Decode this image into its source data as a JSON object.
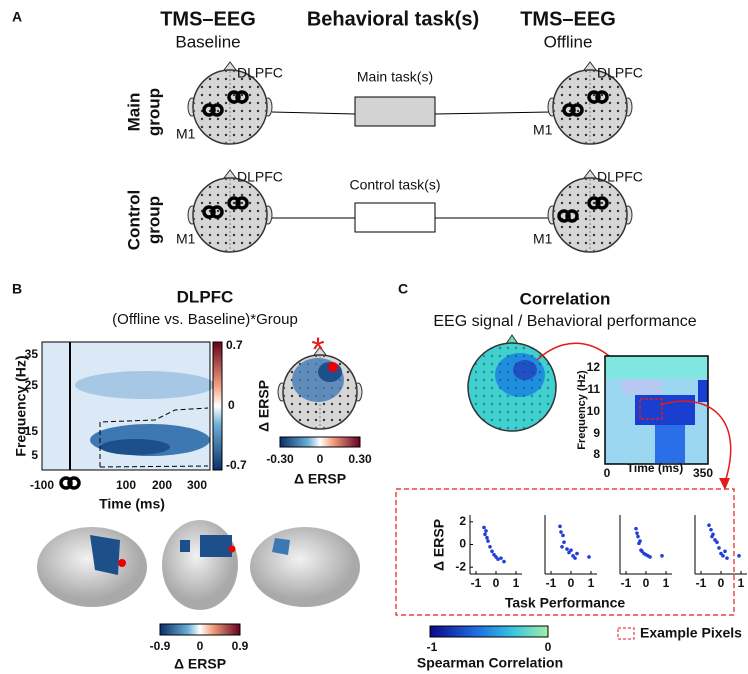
{
  "panel_a": {
    "label": "A",
    "col_left": {
      "title": "TMS–EEG",
      "subtitle": "Baseline"
    },
    "col_mid": {
      "title": "Behavioral task(s)"
    },
    "col_right": {
      "title": "TMS–EEG",
      "subtitle": "Offline"
    },
    "rows": [
      {
        "group": [
          "Main",
          "group"
        ],
        "task": "Main task(s)",
        "target": "DLPFC",
        "site": "M1"
      },
      {
        "group": [
          "Control",
          "group"
        ],
        "task": "Control task(s)",
        "target": "DLPFC",
        "site": "M1"
      }
    ]
  },
  "panel_b": {
    "label": "B",
    "title": "DLPFC",
    "subtitle": "(Offline vs. Baseline)*Group",
    "tf": {
      "ylabel": "Frequency (Hz)",
      "yticks": [
        "35",
        "25",
        "15",
        "5"
      ],
      "xlabel": "Time (ms)",
      "xticks": [
        "-100",
        "100",
        "200",
        "300"
      ],
      "cbar": [
        "0.7",
        "0",
        "-0.7"
      ],
      "cbar_label": "Δ ERSP"
    },
    "topo": {
      "marker": "*",
      "cbar": [
        "-0.30",
        "0",
        "0.30"
      ],
      "cbar_label": "Δ ERSP"
    },
    "brain": {
      "cbar": [
        "-0.9",
        "0",
        "0.9"
      ],
      "cbar_label": "Δ ERSP"
    }
  },
  "panel_c": {
    "label": "C",
    "title": "Correlation",
    "subtitle": "EEG signal / Behavioral performance",
    "heatmap": {
      "ylabel": "Frequency (Hz)",
      "yticks": [
        "12",
        "11",
        "10",
        "9",
        "8"
      ],
      "xlabel": "Time (ms)",
      "xticks": [
        "0",
        "350"
      ]
    },
    "scatter": {
      "ylabel": "Δ ERSP",
      "xlabel": "Task Performance",
      "xlim": [
        -1.3,
        1.3
      ],
      "ylim": [
        -2.6,
        2.6
      ],
      "xticks": [
        -1,
        0,
        1
      ],
      "yticks": [
        2,
        0,
        -2
      ],
      "color": "#1f3fd6",
      "plots": [
        {
          "x": [
            -0.6,
            -0.5,
            -0.45,
            -0.4,
            -0.3,
            -0.2,
            -0.1,
            0,
            0.1,
            0.25,
            0.4,
            -0.55
          ],
          "y": [
            1.5,
            1.2,
            0.6,
            0.3,
            -0.2,
            -0.6,
            -0.9,
            -1.1,
            -1.3,
            -1.2,
            -1.5,
            0.9
          ]
        },
        {
          "x": [
            -0.55,
            -0.5,
            -0.4,
            -0.35,
            -0.2,
            -0.1,
            0,
            0.1,
            0.2,
            0.3,
            0.9,
            -0.45
          ],
          "y": [
            1.6,
            1.1,
            0.8,
            0.2,
            -0.4,
            -0.7,
            -0.5,
            -1.0,
            -1.2,
            -0.8,
            -1.1,
            -0.2
          ]
        },
        {
          "x": [
            -0.5,
            -0.45,
            -0.4,
            -0.3,
            -0.25,
            -0.2,
            -0.1,
            0,
            0.1,
            0.2,
            0.8,
            -0.35
          ],
          "y": [
            1.4,
            1.0,
            0.7,
            0.3,
            -0.5,
            -0.6,
            -0.8,
            -0.9,
            -1.0,
            -1.1,
            -1.0,
            0.1
          ]
        },
        {
          "x": [
            -0.6,
            -0.5,
            -0.4,
            -0.3,
            -0.2,
            -0.1,
            0,
            0.1,
            0.3,
            0.9,
            -0.45,
            0.2
          ],
          "y": [
            1.7,
            1.3,
            0.9,
            0.4,
            0.2,
            -0.3,
            -0.8,
            -1.0,
            -1.2,
            -1.0,
            0.7,
            -0.6
          ]
        }
      ]
    },
    "cbar": {
      "ticks": [
        "-1",
        "0"
      ],
      "label": "Spearman Correlation"
    },
    "legend": "Example Pixels"
  }
}
